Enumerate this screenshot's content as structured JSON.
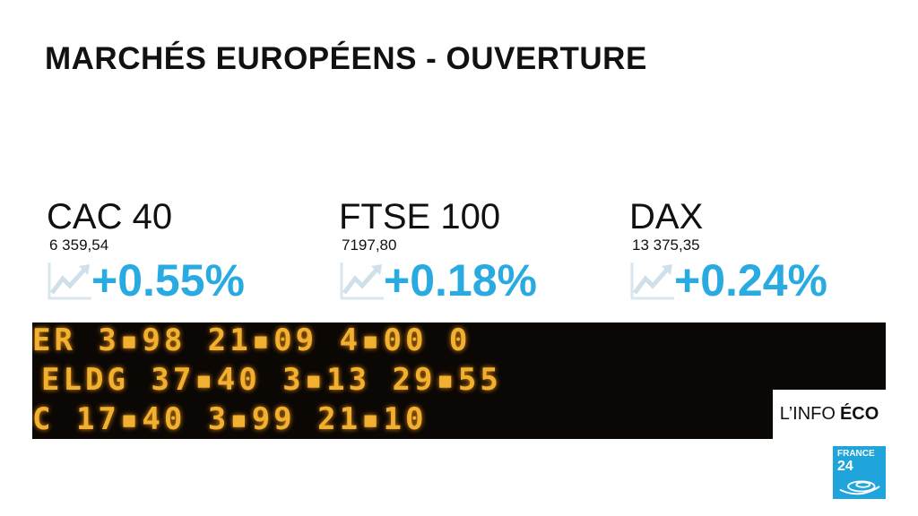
{
  "title": "MARCHÉS EUROPÉENS - OUVERTURE",
  "accent_color": "#29abe2",
  "indices": [
    {
      "name": "CAC 40",
      "value": "6 359,54",
      "change": "+0.55%",
      "trend_icon": "trend-up-icon"
    },
    {
      "name": "FTSE 100",
      "value": "7197,80",
      "change": "+0.18%",
      "trend_icon": "trend-up-icon"
    },
    {
      "name": "DAX",
      "value": "13 375,35",
      "change": "+0.24%",
      "trend_icon": "trend-up-icon"
    }
  ],
  "segment_tag": {
    "light": "L’INFO",
    "bold": "ÉCO"
  },
  "logo": {
    "line1": "FRANCE",
    "line2": "24"
  }
}
